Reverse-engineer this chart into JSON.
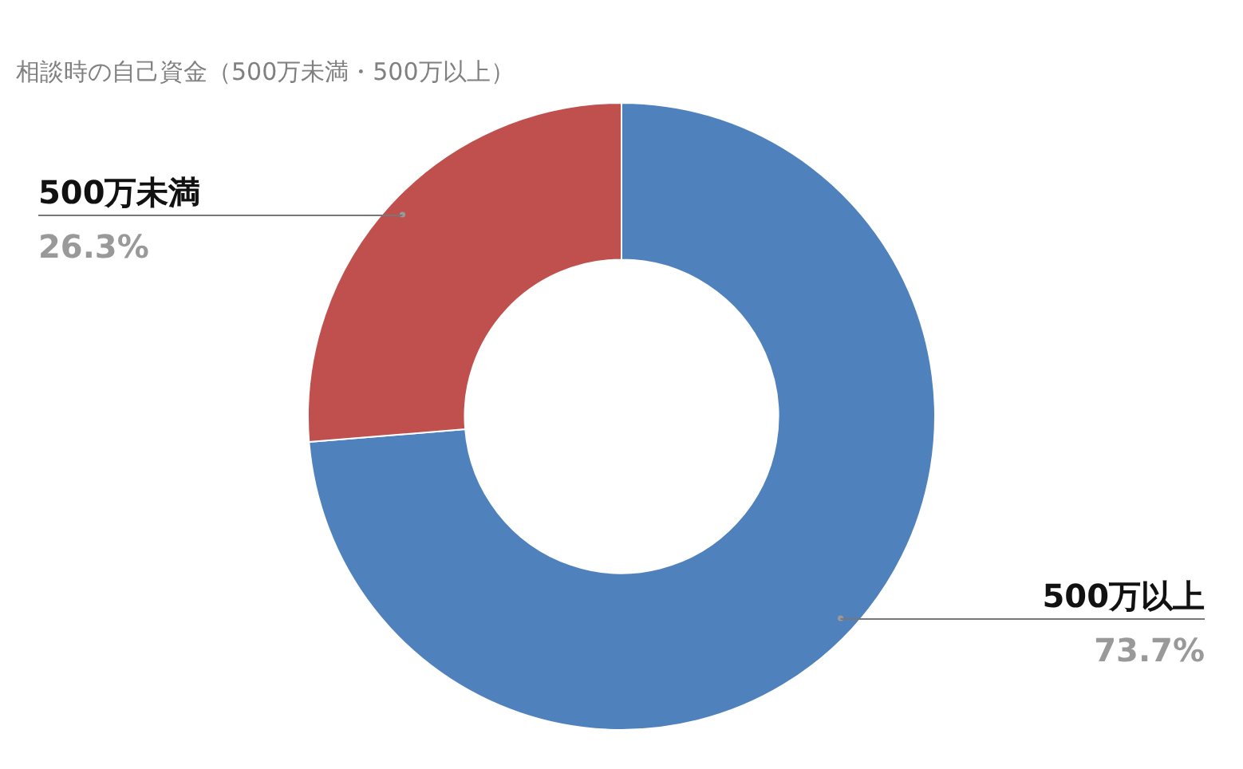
{
  "chart_data": {
    "type": "donut",
    "title": "相談時の自己資金（500万未満・500万以上）",
    "categories": [
      "500万以上",
      "500万未満"
    ],
    "values": [
      73.7,
      26.3
    ],
    "colors": [
      "#4f81bd",
      "#c0504d"
    ],
    "value_labels": [
      "73.7%",
      "26.3%"
    ],
    "legend": false
  }
}
